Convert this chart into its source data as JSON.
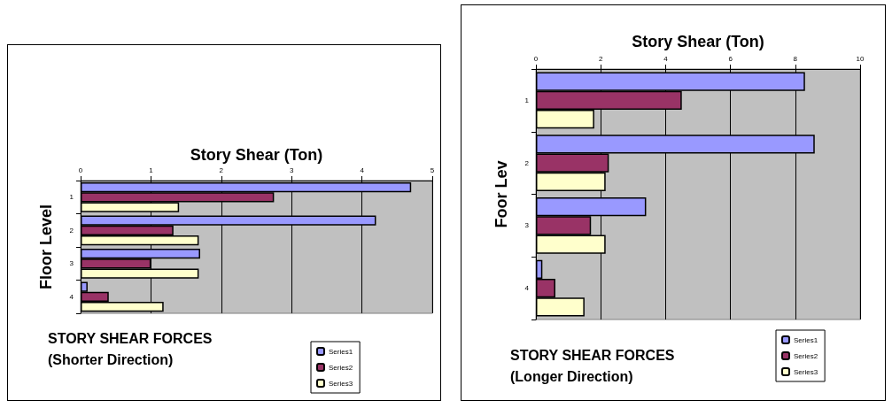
{
  "chart_data": [
    {
      "type": "bar",
      "orientation": "horizontal",
      "title": "STORY SHEAR FORCES",
      "subtitle": "(Shorter Direction)",
      "xlabel": "Story Shear (Ton)",
      "ylabel": "Floor Level",
      "categories": [
        "1",
        "2",
        "3",
        "4"
      ],
      "xlim": [
        0,
        5
      ],
      "xticks": [
        0,
        1,
        2,
        3,
        4,
        5
      ],
      "grid": "x",
      "legend": "bottom right",
      "series": [
        {
          "name": "Series1",
          "color": "#9999ff",
          "values": [
            4.7,
            4.2,
            1.7,
            0.1
          ]
        },
        {
          "name": "Series2",
          "color": "#993366",
          "values": [
            2.75,
            1.32,
            1.0,
            0.4
          ]
        },
        {
          "name": "Series3",
          "color": "#ffffcc",
          "values": [
            1.4,
            1.68,
            1.68,
            1.18
          ]
        }
      ]
    },
    {
      "type": "bar",
      "orientation": "horizontal",
      "title": "STORY SHEAR FORCES",
      "subtitle": "(Longer Direction)",
      "xlabel": "Story Shear (Ton)",
      "ylabel": "Foor Lev",
      "categories": [
        "1",
        "2",
        "3",
        "4"
      ],
      "xlim": [
        0,
        10
      ],
      "xticks": [
        0,
        2,
        4,
        6,
        8,
        10
      ],
      "grid": "x",
      "legend": "bottom right",
      "series": [
        {
          "name": "Series1",
          "color": "#9999ff",
          "values": [
            8.3,
            8.6,
            3.4,
            0.2
          ]
        },
        {
          "name": "Series2",
          "color": "#993366",
          "values": [
            4.5,
            2.25,
            1.7,
            0.6
          ]
        },
        {
          "name": "Series3",
          "color": "#ffffcc",
          "values": [
            1.8,
            2.15,
            2.15,
            1.5
          ]
        }
      ]
    }
  ]
}
